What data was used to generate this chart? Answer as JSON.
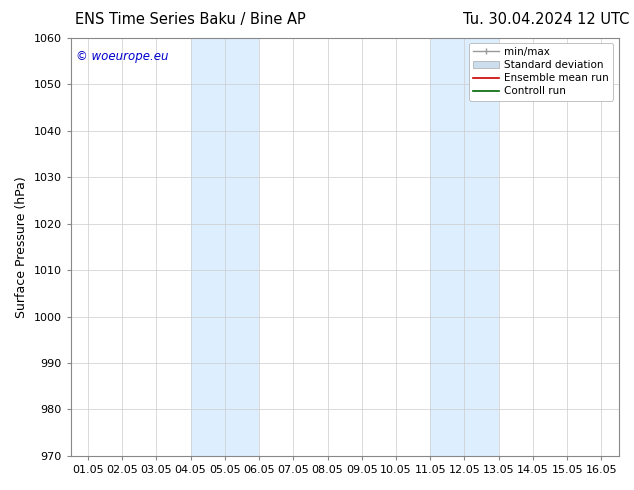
{
  "title_left": "ENS Time Series Baku / Bine AP",
  "title_right": "Tu. 30.04.2024 12 UTC",
  "ylabel": "Surface Pressure (hPa)",
  "xlabel": "",
  "ylim": [
    970,
    1060
  ],
  "yticks": [
    970,
    980,
    990,
    1000,
    1010,
    1020,
    1030,
    1040,
    1050,
    1060
  ],
  "xtick_labels": [
    "01.05",
    "02.05",
    "03.05",
    "04.05",
    "05.05",
    "06.05",
    "07.05",
    "08.05",
    "09.05",
    "10.05",
    "11.05",
    "12.05",
    "13.05",
    "14.05",
    "15.05",
    "16.05"
  ],
  "num_xticks": 16,
  "xlim": [
    0,
    15
  ],
  "shaded_regions": [
    {
      "xmin": 3,
      "xmax": 5,
      "color": "#ddeeff"
    },
    {
      "xmin": 10,
      "xmax": 12,
      "color": "#ddeeff"
    }
  ],
  "watermark_text": "© woeurope.eu",
  "watermark_color": "#0000cc",
  "legend_items": [
    {
      "label": "min/max",
      "color": "#999999",
      "type": "errbar"
    },
    {
      "label": "Standard deviation",
      "color": "#ccddee",
      "type": "patch"
    },
    {
      "label": "Ensemble mean run",
      "color": "#cc0000",
      "type": "line"
    },
    {
      "label": "Controll run",
      "color": "#006600",
      "type": "line"
    }
  ],
  "bg_color": "#ffffff",
  "title_fontsize": 10.5,
  "ylabel_fontsize": 9,
  "tick_fontsize": 8,
  "watermark_fontsize": 8.5,
  "legend_fontsize": 7.5
}
